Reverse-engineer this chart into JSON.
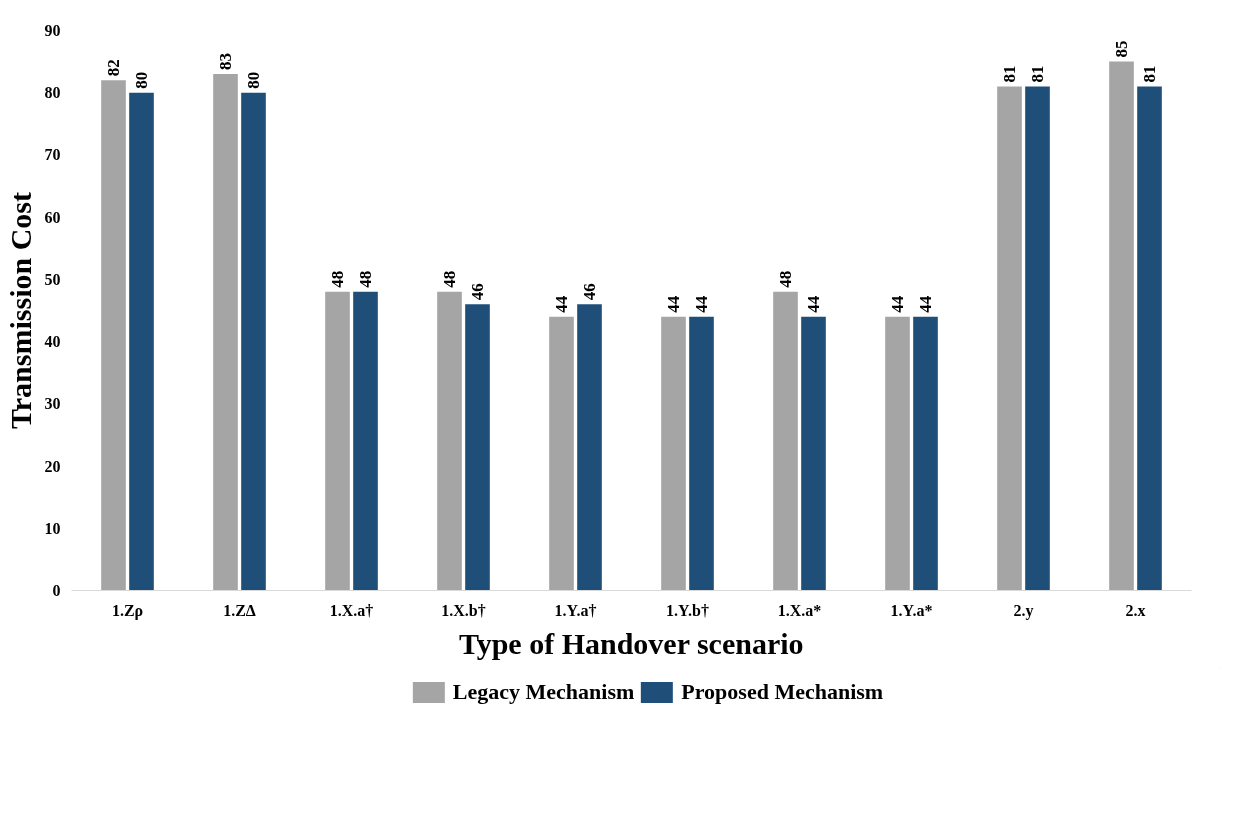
{
  "chart_data": {
    "type": "bar",
    "xlabel": "Type of Handover scenario",
    "ylabel": "Transmission Cost",
    "categories": [
      "1.Zρ",
      "1.ZΔ",
      "1.X.a†",
      "1.X.b†",
      "1.Y.a†",
      "1.Y.b†",
      "1.X.a*",
      "1.Y.a*",
      "2.y",
      "2.x"
    ],
    "series": [
      {
        "name": "Legacy Mechanism",
        "color": "#a5a5a5",
        "values": [
          82,
          83,
          48,
          48,
          44,
          44,
          48,
          44,
          81,
          85
        ]
      },
      {
        "name": "Proposed Mechanism",
        "color": "#1f4e79",
        "values": [
          80,
          80,
          48,
          46,
          46,
          44,
          44,
          44,
          81,
          81
        ]
      }
    ],
    "ylim": [
      0,
      90
    ],
    "yticks": [
      0,
      10,
      20,
      30,
      40,
      50,
      60,
      70,
      80,
      90
    ],
    "grid": false,
    "legend": "bottom",
    "data_labels": true
  }
}
